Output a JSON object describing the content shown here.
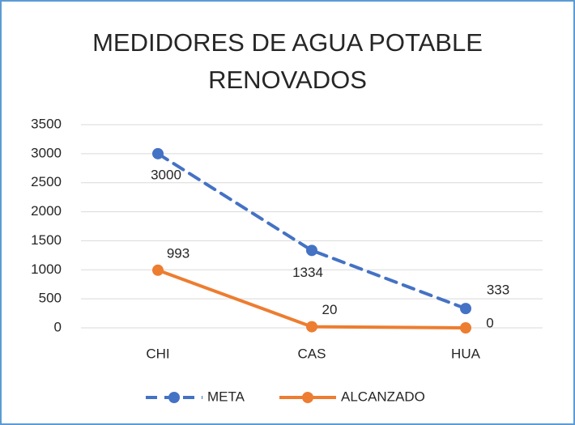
{
  "chart_data": {
    "type": "line",
    "title": "MEDIDORES DE AGUA POTABLE RENOVADOS",
    "categories": [
      "CHI",
      "CAS",
      "HUA"
    ],
    "series": [
      {
        "name": "META",
        "color": "#4472c4",
        "dashed": true,
        "values": [
          3000,
          1334,
          333
        ]
      },
      {
        "name": "ALCANZADO",
        "color": "#ed7d31",
        "dashed": false,
        "values": [
          993,
          20,
          0
        ]
      }
    ],
    "ylim": [
      0,
      3500
    ],
    "yticks": [
      0,
      500,
      1000,
      1500,
      2000,
      2500,
      3000,
      3500
    ],
    "grid": true,
    "legend": "bottom"
  }
}
